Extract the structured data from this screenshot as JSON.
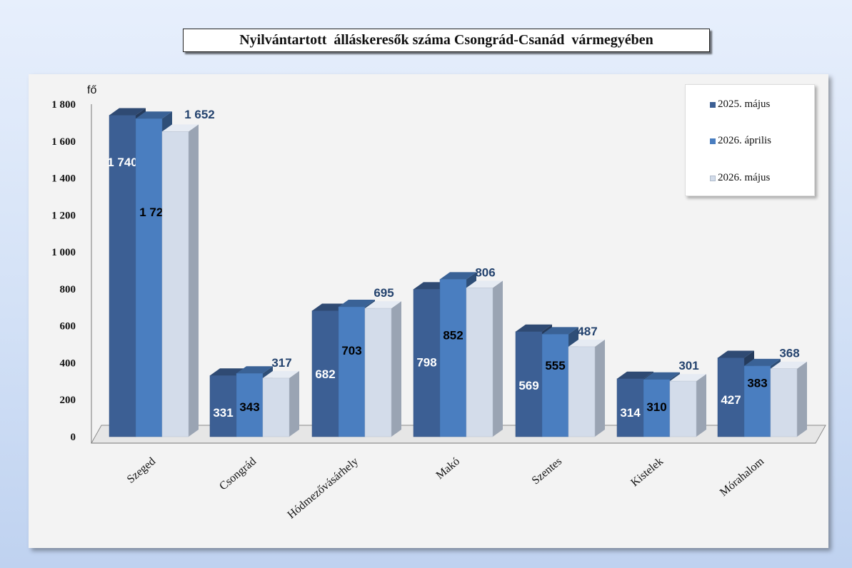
{
  "chart_data": {
    "type": "bar",
    "title": "Nyilvántartott  álláskeresők száma Csongrád-Csanád  vármegyében",
    "ylabel": "fő",
    "categories": [
      "Szeged",
      "Csongrád",
      "Hódmezővásárhely",
      "Makó",
      "Szentes",
      "Kistelek",
      "Mórahalom"
    ],
    "series": [
      {
        "name": "2025. május",
        "values": [
          1740,
          331,
          682,
          798,
          569,
          314,
          427
        ],
        "labels": [
          "1 740",
          "331",
          "682",
          "798",
          "569",
          "314",
          "427"
        ],
        "color": "#3c5f94"
      },
      {
        "name": "2026. április",
        "values": [
          1722,
          343,
          703,
          852,
          555,
          310,
          383
        ],
        "labels": [
          "1 722",
          "343",
          "703",
          "852",
          "555",
          "310",
          "383"
        ],
        "color": "#4a7ec0"
      },
      {
        "name": "2026. május",
        "values": [
          1652,
          317,
          695,
          806,
          487,
          301,
          368
        ],
        "labels": [
          "1 652",
          "317",
          "695",
          "806",
          "487",
          "301",
          "368"
        ],
        "color": "#d3dcea"
      }
    ],
    "ylim": [
      0,
      1800
    ],
    "yticks": [
      "0",
      "200",
      "400",
      "600",
      "800",
      "1 000",
      "1 200",
      "1 400",
      "1 600",
      "1 800"
    ],
    "legend_position": "top-right",
    "grid": false
  }
}
